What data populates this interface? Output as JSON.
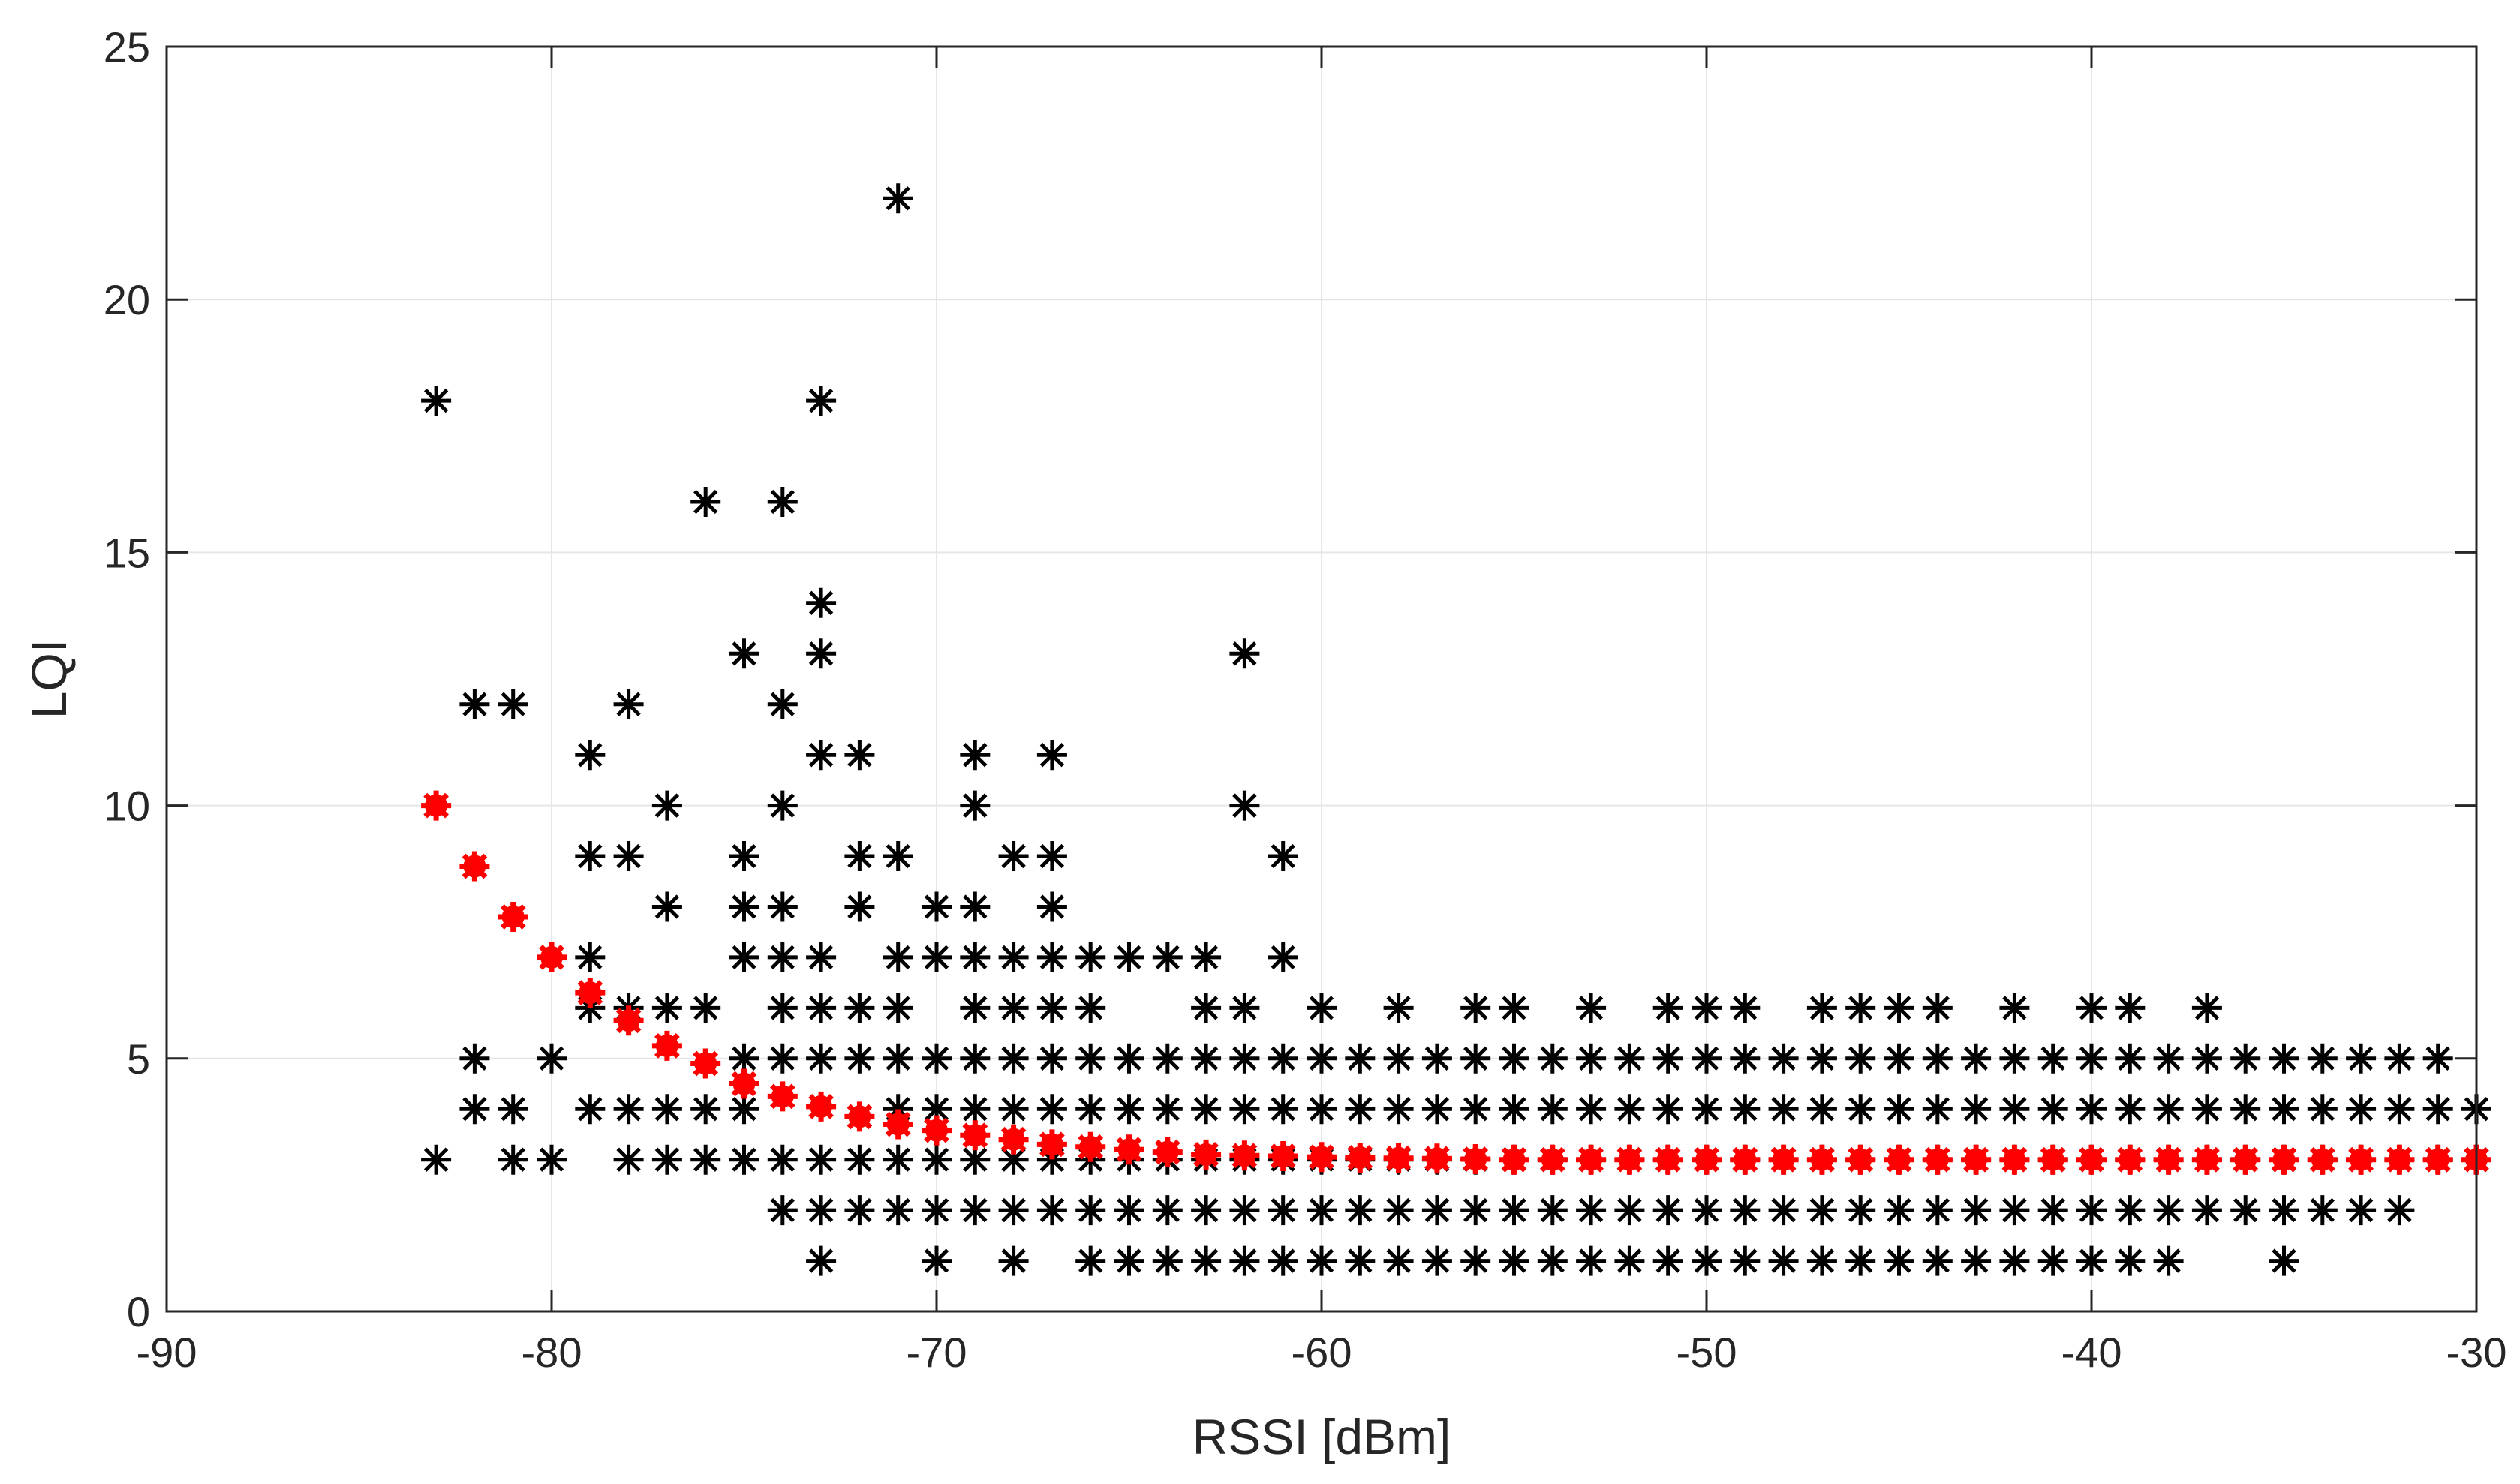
{
  "chart_data": {
    "type": "scatter",
    "xlabel": "RSSI [dBm]",
    "ylabel": "LQI",
    "xlim": [
      -90,
      -30
    ],
    "ylim": [
      0,
      25
    ],
    "xticks": [
      -90,
      -80,
      -70,
      -60,
      -50,
      -40,
      -30
    ],
    "yticks": [
      0,
      5,
      10,
      15,
      20,
      25
    ],
    "grid": true,
    "colors": {
      "measured": "#000000",
      "mean": "#ff0000",
      "grid": "#e6e6e6",
      "axes": "#262626"
    },
    "series": [
      {
        "marker": "asterisk",
        "columns": [
          {
            "x": -83,
            "y": [
              18,
              3
            ]
          },
          {
            "x": -82,
            "y": [
              12,
              5,
              4
            ]
          },
          {
            "x": -81,
            "y": [
              12,
              4,
              3
            ]
          },
          {
            "x": -80,
            "y": [
              5,
              3
            ]
          },
          {
            "x": -79,
            "y": [
              11,
              9,
              7,
              6,
              4
            ]
          },
          {
            "x": -78,
            "y": [
              12,
              9,
              6,
              4,
              3
            ]
          },
          {
            "x": -77,
            "y": [
              10,
              8,
              6,
              4,
              3
            ]
          },
          {
            "x": -76,
            "y": [
              16,
              6,
              4,
              3
            ]
          },
          {
            "x": -75,
            "y": [
              13,
              9,
              8,
              7,
              5,
              4,
              3
            ]
          },
          {
            "x": -74,
            "y": [
              16,
              12,
              10,
              8,
              7,
              6,
              5,
              3,
              2
            ]
          },
          {
            "x": -73,
            "y": [
              18,
              14,
              13,
              11,
              7,
              6,
              5,
              3,
              2,
              1
            ]
          },
          {
            "x": -72,
            "y": [
              11,
              9,
              8,
              6,
              5,
              3,
              2
            ]
          },
          {
            "x": -71,
            "y": [
              22,
              9,
              7,
              6,
              5,
              4,
              3,
              2
            ]
          },
          {
            "x": -70,
            "y": [
              8,
              7,
              5,
              4,
              3,
              2,
              1
            ]
          },
          {
            "x": -69,
            "y": [
              11,
              10,
              8,
              7,
              6,
              5,
              4,
              3,
              2
            ]
          },
          {
            "x": -68,
            "y": [
              9,
              7,
              6,
              5,
              4,
              3,
              2,
              1
            ]
          },
          {
            "x": -67,
            "y": [
              11,
              9,
              8,
              7,
              6,
              5,
              4,
              3,
              2
            ]
          },
          {
            "x": -66,
            "y": [
              7,
              6,
              5,
              4,
              3,
              2,
              1
            ]
          },
          {
            "x": -65,
            "y": [
              7,
              5,
              4,
              3,
              2,
              1
            ]
          },
          {
            "x": -64,
            "y": [
              7,
              5,
              4,
              3,
              2,
              1
            ]
          },
          {
            "x": -63,
            "y": [
              7,
              6,
              5,
              4,
              3,
              2,
              1
            ]
          },
          {
            "x": -62,
            "y": [
              13,
              10,
              6,
              5,
              4,
              3,
              2,
              1
            ]
          },
          {
            "x": -61,
            "y": [
              9,
              7,
              5,
              4,
              3,
              2,
              1
            ]
          },
          {
            "x": -60,
            "y": [
              6,
              5,
              4,
              3,
              2,
              1
            ]
          },
          {
            "x": -59,
            "y": [
              5,
              4,
              3,
              2,
              1
            ]
          },
          {
            "x": -58,
            "y": [
              6,
              5,
              4,
              3,
              2,
              1
            ]
          },
          {
            "x": -57,
            "y": [
              5,
              4,
              3,
              2,
              1
            ]
          },
          {
            "x": -56,
            "y": [
              6,
              5,
              4,
              3,
              2,
              1
            ]
          },
          {
            "x": -55,
            "y": [
              6,
              5,
              4,
              3,
              2,
              1
            ]
          },
          {
            "x": -54,
            "y": [
              5,
              4,
              3,
              2,
              1
            ]
          },
          {
            "x": -53,
            "y": [
              6,
              5,
              4,
              3,
              2,
              1
            ]
          },
          {
            "x": -52,
            "y": [
              5,
              4,
              3,
              2,
              1
            ]
          },
          {
            "x": -51,
            "y": [
              6,
              5,
              4,
              3,
              2,
              1
            ]
          },
          {
            "x": -50,
            "y": [
              6,
              5,
              4,
              3,
              2,
              1
            ]
          },
          {
            "x": -49,
            "y": [
              6,
              5,
              4,
              3,
              2,
              1
            ]
          },
          {
            "x": -48,
            "y": [
              5,
              4,
              3,
              2,
              1
            ]
          },
          {
            "x": -47,
            "y": [
              6,
              5,
              4,
              3,
              2,
              1
            ]
          },
          {
            "x": -46,
            "y": [
              6,
              5,
              4,
              3,
              2,
              1
            ]
          },
          {
            "x": -45,
            "y": [
              6,
              5,
              4,
              3,
              2,
              1
            ]
          },
          {
            "x": -44,
            "y": [
              6,
              5,
              4,
              3,
              2,
              1
            ]
          },
          {
            "x": -43,
            "y": [
              5,
              4,
              3,
              2,
              1
            ]
          },
          {
            "x": -42,
            "y": [
              6,
              5,
              4,
              3,
              2,
              1
            ]
          },
          {
            "x": -41,
            "y": [
              5,
              4,
              3,
              2,
              1
            ]
          },
          {
            "x": -40,
            "y": [
              6,
              5,
              4,
              3,
              2,
              1
            ]
          },
          {
            "x": -39,
            "y": [
              6,
              5,
              4,
              3,
              2,
              1
            ]
          },
          {
            "x": -38,
            "y": [
              5,
              4,
              3,
              2,
              1
            ]
          },
          {
            "x": -37,
            "y": [
              6,
              5,
              4,
              3,
              2
            ]
          },
          {
            "x": -36,
            "y": [
              5,
              4,
              3,
              2
            ]
          },
          {
            "x": -35,
            "y": [
              5,
              4,
              3,
              2,
              1
            ]
          },
          {
            "x": -34,
            "y": [
              5,
              4,
              3,
              2
            ]
          },
          {
            "x": -33,
            "y": [
              5,
              4,
              3,
              2
            ]
          },
          {
            "x": -32,
            "y": [
              5,
              4,
              3,
              2
            ]
          },
          {
            "x": -31,
            "y": [
              5,
              4,
              3
            ]
          },
          {
            "x": -30,
            "y": [
              4,
              3
            ]
          }
        ]
      },
      {
        "marker": "filled-star",
        "x": [
          -83,
          -82,
          -81,
          -80,
          -79,
          -78,
          -77,
          -76,
          -75,
          -74,
          -73,
          -72,
          -71,
          -70,
          -69,
          -68,
          -67,
          -66,
          -65,
          -64,
          -63,
          -62,
          -61,
          -60,
          -59,
          -58,
          -57,
          -56,
          -55,
          -54,
          -53,
          -52,
          -51,
          -50,
          -49,
          -48,
          -47,
          -46,
          -45,
          -44,
          -43,
          -42,
          -41,
          -40,
          -39,
          -38,
          -37,
          -36,
          -35,
          -34,
          -33,
          -32,
          -31,
          -30
        ],
        "y": [
          10,
          8.8,
          7.8,
          7,
          6.3,
          5.75,
          5.25,
          4.9,
          4.5,
          4.25,
          4.05,
          3.85,
          3.7,
          3.58,
          3.48,
          3.4,
          3.3,
          3.25,
          3.2,
          3.15,
          3.1,
          3.08,
          3.07,
          3.05,
          3.04,
          3.03,
          3.02,
          3.01,
          3,
          3,
          3,
          3,
          3,
          3,
          3,
          3,
          3,
          3,
          3,
          3,
          3,
          3,
          3,
          3,
          3,
          3,
          3,
          3,
          3,
          3,
          3,
          3,
          3,
          3
        ]
      }
    ]
  }
}
